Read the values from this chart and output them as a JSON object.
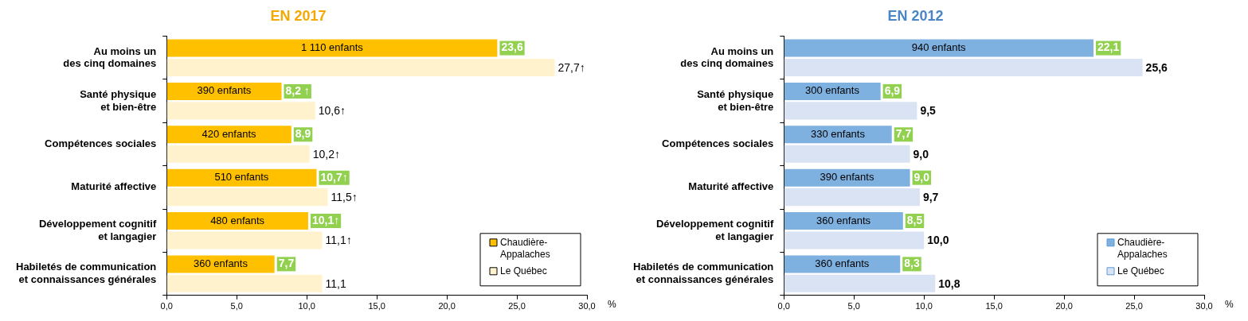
{
  "chart_data": [
    {
      "type": "bar",
      "title": "EN 2017",
      "orientation": "horizontal",
      "legend": "bottom right",
      "grid": false,
      "xlabel": "%",
      "categories": [
        "Au moins un\ndes cinq domaines",
        "Santé physique\net bien-être",
        "Compétences sociales",
        "Maturité affective",
        "Développement cognitif\net langagier",
        "Habiletés de communication\net connaissances générales"
      ],
      "series": [
        {
          "name": "Chaudière-Appalaches",
          "color": "#ffc000",
          "values": [
            23.6,
            8.2,
            8.9,
            10.7,
            10.1,
            7.7
          ],
          "value_labels": [
            "23,6",
            "8,2 ↑",
            "8,9",
            "10,7↑",
            "10,1↑",
            "7,7"
          ]
        },
        {
          "name": "Le Québec",
          "color": "#fff2cc",
          "values": [
            27.7,
            10.6,
            10.2,
            11.5,
            11.1,
            11.1
          ],
          "value_labels": [
            "27,7↑",
            "10,6↑",
            "10,2↑",
            "11,5↑",
            "11,1↑",
            "11,1"
          ]
        }
      ],
      "xlim": [
        0,
        30
      ],
      "xticks": [
        {
          "value": 0,
          "label": "0,0"
        },
        {
          "value": 5,
          "label": "5,0"
        },
        {
          "value": 10,
          "label": "10,0"
        },
        {
          "value": 15,
          "label": "15,0"
        },
        {
          "value": 20,
          "label": "20,0"
        },
        {
          "value": 25,
          "label": "25,0"
        },
        {
          "value": 30,
          "label": "30,0"
        }
      ],
      "annotations": [
        "1 110 enfants",
        "390 enfants",
        "420 enfants",
        "510 enfants",
        "480 enfants",
        "360 enfants"
      ]
    },
    {
      "type": "bar",
      "title": "EN 2012",
      "orientation": "horizontal",
      "legend": "bottom right",
      "grid": false,
      "xlabel": "%",
      "categories": [
        "Au moins un\ndes cinq domaines",
        "Santé physique\net bien-être",
        "Compétences sociales",
        "Maturité affective",
        "Développement cognitif\net langagier",
        "Habiletés de communication\net connaissances générales"
      ],
      "series": [
        {
          "name": "Chaudière-Appalaches",
          "color": "#7eb0e0",
          "values": [
            22.1,
            6.9,
            7.7,
            9.0,
            8.5,
            8.3
          ],
          "value_labels": [
            "22,1",
            "6,9",
            "7,7",
            "9,0",
            "8,5",
            "8,3"
          ]
        },
        {
          "name": "Le Québec",
          "color": "#dae3f3",
          "values": [
            25.6,
            9.5,
            9.0,
            9.7,
            10.0,
            10.8
          ],
          "value_labels": [
            "25,6",
            "9,5",
            "9,0",
            "9,7",
            "10,0",
            "10,8"
          ]
        }
      ],
      "xlim": [
        0,
        30
      ],
      "xticks": [
        {
          "value": 0,
          "label": "0,0"
        },
        {
          "value": 5,
          "label": "5,0"
        },
        {
          "value": 10,
          "label": "10,0"
        },
        {
          "value": 15,
          "label": "15,0"
        },
        {
          "value": 20,
          "label": "20,0"
        },
        {
          "value": 25,
          "label": "25,0"
        },
        {
          "value": 30,
          "label": "30,0"
        }
      ],
      "annotations": [
        "940 enfants",
        "300 enfants",
        "330 enfants",
        "390 enfants",
        "360 enfants",
        "360 enfants"
      ]
    }
  ]
}
